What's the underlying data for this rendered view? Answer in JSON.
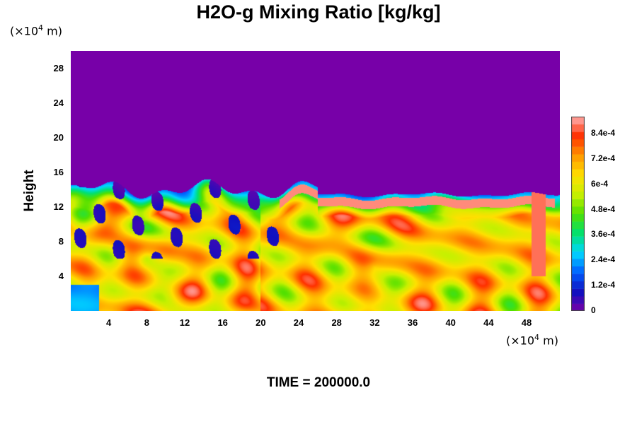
{
  "chart_data": {
    "type": "heatmap",
    "title": "H2O-g Mixing Ratio [kg/kg]",
    "ylabel": "Height",
    "x_unit": {
      "prefix": "(×10",
      "exp": "4",
      "suffix": " m)"
    },
    "y_unit": {
      "prefix": "(×10",
      "exp": "4",
      "suffix": " m)"
    },
    "xlim": [
      0,
      51.5
    ],
    "ylim": [
      0,
      30
    ],
    "x_ticks": [
      "4",
      "8",
      "12",
      "16",
      "20",
      "24",
      "28",
      "32",
      "36",
      "40",
      "44",
      "48"
    ],
    "x_tick_values": [
      4,
      8,
      12,
      16,
      20,
      24,
      28,
      32,
      36,
      40,
      44,
      48
    ],
    "y_ticks": [
      "4",
      "8",
      "12",
      "16",
      "20",
      "24",
      "28"
    ],
    "y_tick_values": [
      4,
      8,
      12,
      16,
      20,
      24,
      28
    ],
    "colorbar": {
      "range": [
        0,
        0.00092
      ],
      "labels": [
        "0",
        "1.2e-4",
        "2.4e-4",
        "3.6e-4",
        "4.8e-4",
        "6e-4",
        "7.2e-4",
        "8.4e-4"
      ],
      "label_values": [
        0,
        0.00012,
        0.00024,
        0.00036,
        0.00048,
        0.0006,
        0.00072,
        0.00084
      ],
      "colors": [
        "#7700a8",
        "#1010c0",
        "#0060ff",
        "#00d8ff",
        "#00e070",
        "#50e000",
        "#c8f000",
        "#ffe000",
        "#ff9800",
        "#ff3000",
        "#ffb0b0"
      ]
    },
    "field": {
      "background_value": 0,
      "moist_layer_top": 14,
      "features": [
        {
          "name": "dry intrusions",
          "value": 6e-05,
          "x": [
            3,
            8,
            12,
            17,
            21
          ],
          "y": [
            11,
            10,
            8,
            9,
            9
          ]
        },
        {
          "name": "moist boundary",
          "value": 0.00088,
          "x": [
            22,
            30,
            40,
            50
          ],
          "y": [
            8,
            12.5,
            12,
            6
          ]
        },
        {
          "name": "lower core",
          "value": 0.00065,
          "x": [
            10,
            30,
            42
          ],
          "y": [
            5,
            6,
            7
          ]
        }
      ]
    },
    "time_label": "TIME = 200000.0"
  }
}
